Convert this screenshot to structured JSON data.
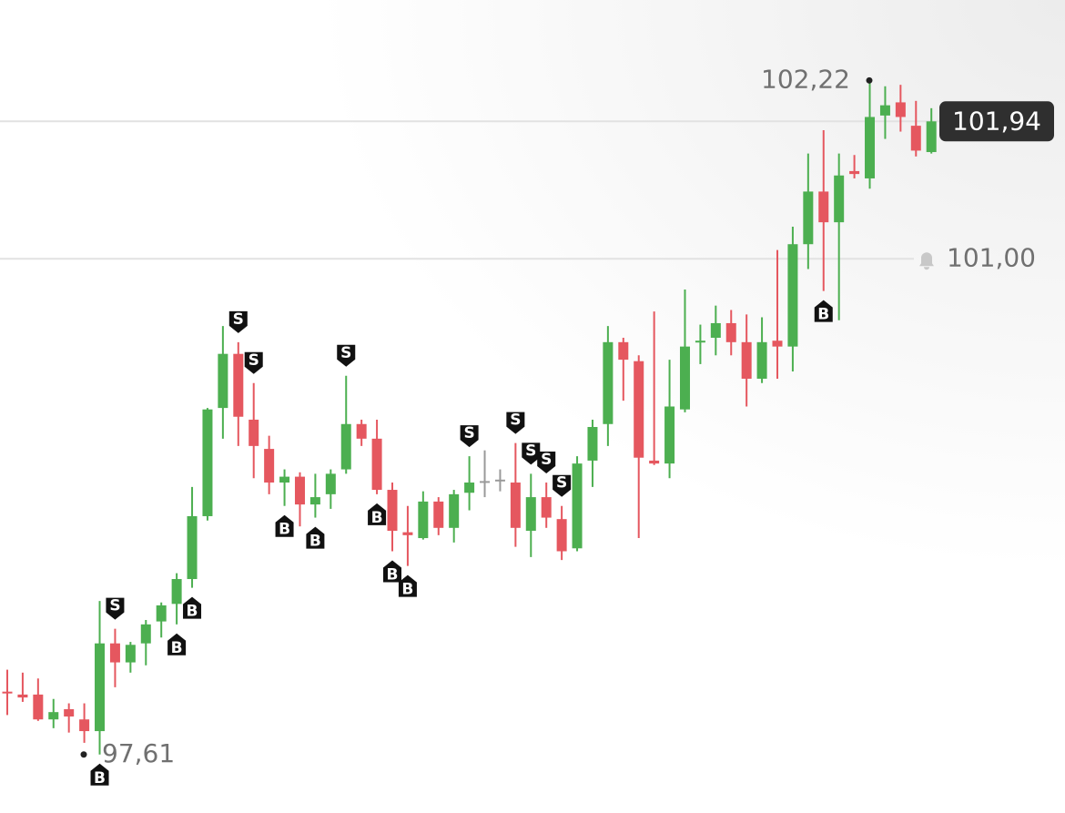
{
  "chart_data": {
    "type": "candlestick",
    "ylim": [
      97.21,
      102.77
    ],
    "up_color": "#4caf50",
    "down_color": "#e5575f",
    "flat_color": "#9a9a9a",
    "open": [
      98.04,
      98.02,
      98.02,
      97.85,
      97.92,
      97.85,
      97.77,
      98.37,
      98.24,
      98.37,
      98.52,
      98.64,
      98.81,
      99.24,
      99.98,
      100.35,
      99.9,
      99.7,
      99.47,
      99.51,
      99.32,
      99.39,
      99.56,
      99.87,
      99.77,
      99.42,
      99.13,
      99.09,
      99.34,
      99.16,
      99.4,
      99.48,
      99.49,
      99.47,
      99.14,
      99.37,
      99.22,
      99.02,
      99.62,
      99.87,
      100.43,
      100.3,
      99.62,
      99.6,
      99.97,
      100.43,
      100.46,
      100.56,
      100.43,
      100.18,
      100.44,
      100.4,
      101.1,
      101.46,
      101.25,
      101.6,
      101.55,
      101.98,
      102.07,
      101.91,
      101.73
    ],
    "high": [
      98.19,
      98.17,
      98.13,
      97.99,
      97.96,
      97.96,
      98.66,
      98.47,
      98.38,
      98.53,
      98.65,
      98.85,
      99.44,
      99.98,
      100.54,
      100.43,
      100.15,
      99.79,
      99.56,
      99.54,
      99.53,
      99.56,
      100.2,
      99.9,
      99.9,
      99.47,
      99.31,
      99.41,
      99.37,
      99.42,
      99.65,
      99.69,
      99.56,
      99.74,
      99.53,
      99.47,
      99.31,
      99.65,
      99.9,
      100.54,
      100.46,
      100.34,
      100.64,
      100.31,
      100.79,
      100.55,
      100.68,
      100.65,
      100.62,
      100.6,
      101.06,
      101.22,
      101.72,
      101.88,
      101.72,
      101.71,
      102.22,
      102.18,
      102.19,
      102.08,
      102.03
    ],
    "low": [
      97.88,
      97.97,
      97.84,
      97.79,
      97.76,
      97.69,
      97.61,
      98.07,
      98.17,
      98.22,
      98.41,
      98.5,
      98.75,
      99.21,
      99.77,
      99.72,
      99.5,
      99.39,
      99.31,
      99.17,
      99.23,
      99.29,
      99.53,
      99.72,
      99.39,
      99.0,
      98.9,
      99.08,
      99.11,
      99.06,
      99.28,
      99.37,
      99.41,
      99.03,
      98.96,
      99.16,
      98.94,
      99.0,
      99.44,
      99.72,
      100.03,
      99.09,
      99.59,
      99.5,
      99.95,
      100.28,
      100.34,
      100.34,
      99.99,
      100.15,
      100.18,
      100.23,
      100.93,
      100.78,
      100.58,
      101.55,
      101.48,
      101.82,
      101.87,
      101.7,
      101.72
    ],
    "close": [
      98.03,
      98.0,
      97.85,
      97.9,
      97.87,
      97.77,
      98.37,
      98.24,
      98.36,
      98.5,
      98.63,
      98.81,
      99.24,
      99.97,
      100.35,
      99.92,
      99.72,
      99.47,
      99.51,
      99.32,
      99.37,
      99.53,
      99.87,
      99.77,
      99.42,
      99.14,
      99.11,
      99.34,
      99.16,
      99.39,
      99.47,
      99.48,
      99.49,
      99.16,
      99.37,
      99.23,
      99.0,
      99.6,
      99.85,
      100.43,
      100.31,
      99.64,
      99.6,
      99.99,
      100.4,
      100.44,
      100.56,
      100.43,
      100.18,
      100.43,
      100.4,
      101.1,
      101.46,
      101.25,
      101.57,
      101.58,
      101.97,
      102.05,
      101.97,
      101.74,
      101.94
    ],
    "trades": [
      {
        "candle": 6,
        "label": "B"
      },
      {
        "candle": 7,
        "label": "S"
      },
      {
        "candle": 11,
        "label": "B"
      },
      {
        "candle": 12,
        "label": "B"
      },
      {
        "candle": 15,
        "label": "S"
      },
      {
        "candle": 16,
        "label": "S"
      },
      {
        "candle": 18,
        "label": "B"
      },
      {
        "candle": 20,
        "label": "B"
      },
      {
        "candle": 22,
        "label": "S"
      },
      {
        "candle": 24,
        "label": "B"
      },
      {
        "candle": 25,
        "label": "B"
      },
      {
        "candle": 26,
        "label": "B"
      },
      {
        "candle": 30,
        "label": "S"
      },
      {
        "candle": 33,
        "label": "S"
      },
      {
        "candle": 34,
        "label": "S"
      },
      {
        "candle": 35,
        "label": "S"
      },
      {
        "candle": 36,
        "label": "S"
      },
      {
        "candle": 53,
        "label": "B"
      }
    ],
    "high_label": {
      "value": 102.22,
      "label": "102,22"
    },
    "low_label": {
      "value": 97.61,
      "label": "97,61"
    },
    "last_price": {
      "value": 101.94,
      "label": "101,94"
    },
    "alert_level": {
      "value": 101.0,
      "label": "101,00"
    }
  }
}
